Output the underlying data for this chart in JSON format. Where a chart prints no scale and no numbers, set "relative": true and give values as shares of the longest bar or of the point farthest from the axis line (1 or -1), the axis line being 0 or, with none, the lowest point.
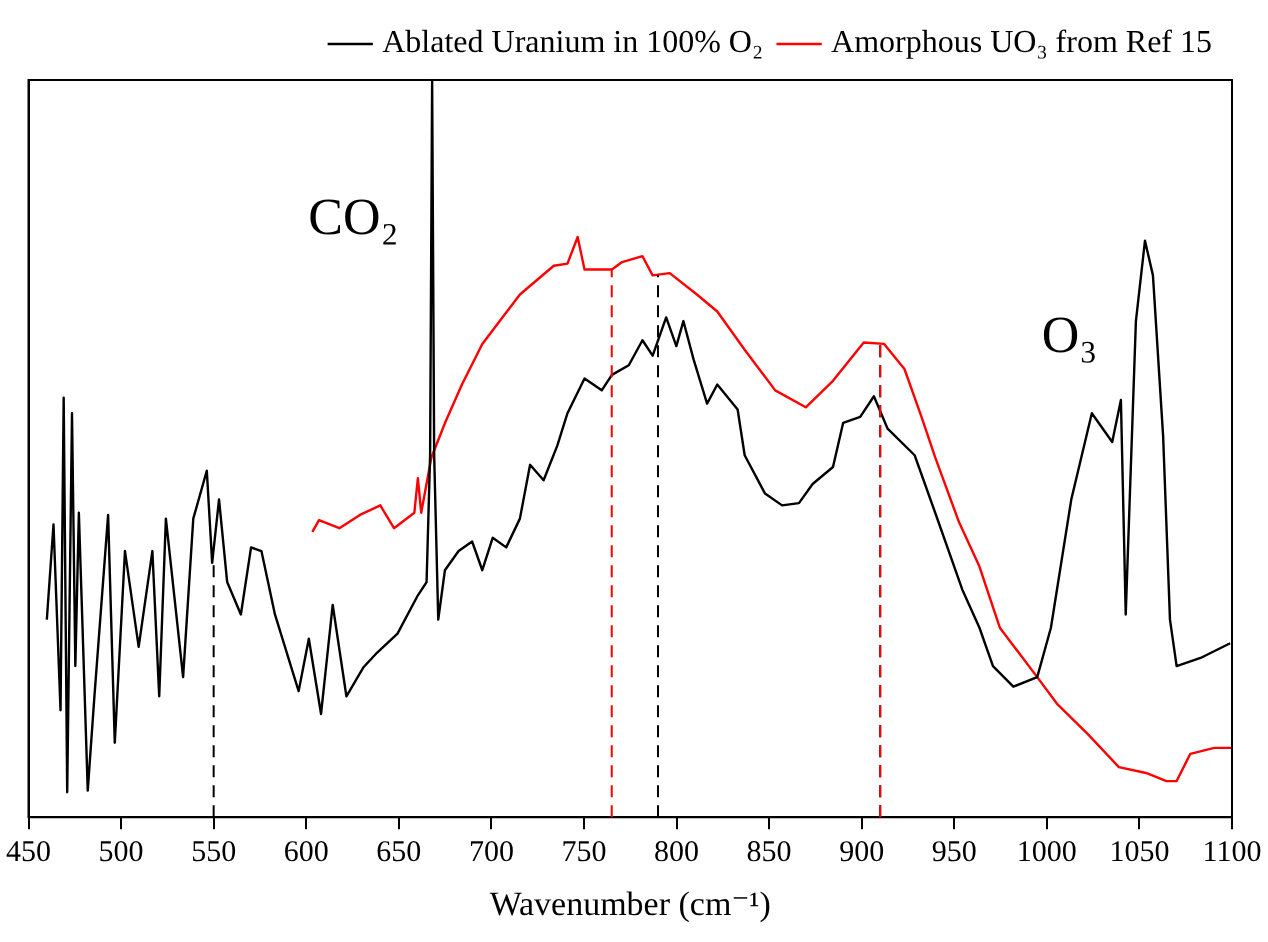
{
  "chart_data": {
    "type": "line",
    "xlabel": "Wavenumber (cm⁻¹)",
    "relative": true,
    "legend": "top right",
    "grid": false,
    "marker": "none",
    "line_style": "solid",
    "xlim": [
      450,
      1100
    ],
    "xticks": [
      450,
      500,
      550,
      600,
      650,
      700,
      750,
      800,
      850,
      900,
      950,
      1000,
      1050,
      1100
    ],
    "annotations": [
      "CO₂",
      "O₃"
    ],
    "ref_lines": [
      {
        "axis": "x",
        "value": 550,
        "color": "#000000",
        "line_style": "dashed"
      },
      {
        "axis": "x",
        "value": 765,
        "color": "#ff0000",
        "line_style": "dashed"
      },
      {
        "axis": "x",
        "value": 790,
        "color": "#000000",
        "line_style": "dashed"
      },
      {
        "axis": "x",
        "value": 910,
        "color": "#000000",
        "line_style": "dashed"
      },
      {
        "axis": "x",
        "value": 910,
        "color": "#ff0000",
        "line_style": "dashed"
      }
    ],
    "series": [
      {
        "name": "Ablated Uranium in 100% O₂",
        "color": "#000000",
        "x": [
          459.9,
          463.5,
          467.3,
          469.0,
          470.9,
          473.5,
          475.3,
          477.2,
          482.0,
          485.6,
          493.0,
          496.6,
          502.1,
          509.5,
          516.9,
          520.6,
          524.2,
          533.5,
          539.0,
          546.3,
          549.2,
          552.9,
          557.3,
          564.7,
          570.2,
          575.8,
          583.1,
          595.9,
          601.4,
          608.0,
          614.3,
          621.7,
          630.8,
          638.2,
          649.3,
          660.3,
          665.0,
          666.9,
          668.0,
          669.1,
          671.3,
          674.9,
          682.3,
          689.6,
          695.1,
          700.7,
          708.0,
          715.4,
          720.9,
          728.2,
          735.6,
          741.1,
          750.3,
          759.6,
          765.1,
          774.2,
          781.6,
          787.1,
          794.4,
          799.9,
          803.7,
          809.2,
          816.5,
          822.0,
          833.0,
          836.8,
          847.8,
          857.0,
          866.1,
          873.5,
          884.5,
          890.0,
          899.2,
          906.6,
          914.0,
          928.6,
          939.7,
          954.3,
          963.6,
          970.9,
          981.9,
          994.8,
          1002.2,
          1013.2,
          1024.3,
          1035.3,
          1040.0,
          1042.6,
          1048.1,
          1053.0,
          1057.3,
          1062.8,
          1066.5,
          1070.1,
          1083.0,
          1099.0
        ],
        "values": [
          0.268,
          0.397,
          0.145,
          0.569,
          0.034,
          0.548,
          0.205,
          0.413,
          0.036,
          0.164,
          0.41,
          0.101,
          0.361,
          0.231,
          0.361,
          0.164,
          0.405,
          0.19,
          0.405,
          0.47,
          0.345,
          0.431,
          0.319,
          0.275,
          0.366,
          0.361,
          0.275,
          0.171,
          0.242,
          0.14,
          0.288,
          0.164,
          0.203,
          0.223,
          0.249,
          0.301,
          0.319,
          0.491,
          1.0,
          0.491,
          0.268,
          0.335,
          0.361,
          0.374,
          0.335,
          0.379,
          0.366,
          0.405,
          0.478,
          0.457,
          0.504,
          0.548,
          0.595,
          0.579,
          0.6,
          0.613,
          0.647,
          0.626,
          0.678,
          0.639,
          0.673,
          0.621,
          0.561,
          0.587,
          0.553,
          0.491,
          0.439,
          0.423,
          0.426,
          0.452,
          0.475,
          0.535,
          0.543,
          0.571,
          0.527,
          0.491,
          0.413,
          0.309,
          0.257,
          0.205,
          0.177,
          0.19,
          0.257,
          0.431,
          0.548,
          0.509,
          0.566,
          0.275,
          0.673,
          0.782,
          0.735,
          0.517,
          0.268,
          0.205,
          0.216,
          0.236
        ]
      },
      {
        "name": "Amorphous UO₃ from Ref 15",
        "color": "#ff0000",
        "x": [
          603.3,
          606.9,
          617.9,
          629.0,
          640.0,
          647.4,
          658.4,
          660.3,
          662.1,
          667.6,
          675.0,
          684.1,
          695.1,
          715.4,
          733.7,
          741.1,
          746.6,
          750.3,
          765.1,
          770.6,
          781.6,
          787.1,
          796.3,
          811.0,
          822.0,
          836.8,
          853.3,
          869.8,
          884.5,
          901.1,
          912.1,
          923.1,
          932.3,
          939.7,
          952.6,
          963.6,
          974.6,
          994.8,
          1005.8,
          1022.4,
          1038.9,
          1053.6,
          1064.6,
          1070.1,
          1077.5,
          1090.4,
          1099.5
        ],
        "values": [
          0.387,
          0.403,
          0.392,
          0.41,
          0.423,
          0.392,
          0.413,
          0.46,
          0.413,
          0.488,
          0.535,
          0.587,
          0.642,
          0.709,
          0.748,
          0.751,
          0.787,
          0.743,
          0.743,
          0.753,
          0.761,
          0.735,
          0.738,
          0.709,
          0.686,
          0.634,
          0.579,
          0.556,
          0.592,
          0.644,
          0.642,
          0.608,
          0.543,
          0.488,
          0.4,
          0.34,
          0.257,
          0.19,
          0.153,
          0.112,
          0.068,
          0.06,
          0.049,
          0.049,
          0.086,
          0.094,
          0.094
        ]
      }
    ]
  }
}
